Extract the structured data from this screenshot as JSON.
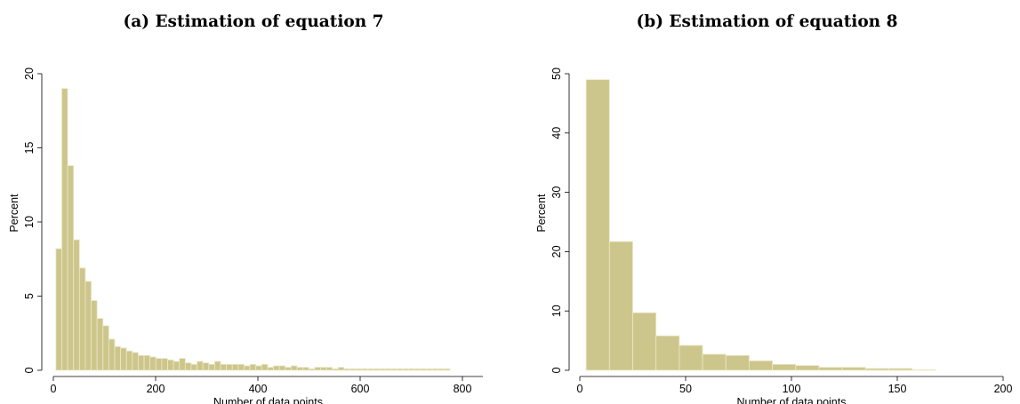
{
  "chart_data": [
    {
      "type": "bar",
      "title": "(a) Estimation of equation 7",
      "xlabel": "Number of data points",
      "ylabel": "Percent",
      "xlim": [
        0,
        840
      ],
      "ylim": [
        0,
        20
      ],
      "xticks": [
        0,
        200,
        400,
        600,
        800
      ],
      "yticks": [
        0,
        5,
        10,
        15,
        20
      ],
      "bin_width": 11.5,
      "bins_start": [
        5,
        16.5,
        28,
        39.5,
        51,
        62.5,
        74,
        85.5,
        97,
        108.5,
        120,
        131.5,
        143,
        154.5,
        166,
        177.5,
        189,
        200.5,
        212,
        223.5,
        235,
        246.5,
        258,
        269.5,
        281,
        292.5,
        304,
        315.5,
        327,
        338.5,
        350,
        361.5,
        373,
        384.5,
        396,
        407.5,
        419,
        430.5,
        442,
        453.5,
        465,
        476.5,
        488,
        499.5,
        511,
        522.5,
        534,
        545.5,
        557,
        568.5,
        580,
        591.5,
        603,
        614.5,
        626,
        637.5,
        649,
        660.5,
        672,
        683.5,
        695,
        706.5,
        718,
        729.5,
        741,
        752.5,
        764
      ],
      "values": [
        8.2,
        19.0,
        13.8,
        8.8,
        6.9,
        6.0,
        4.7,
        3.5,
        3.0,
        2.1,
        1.6,
        1.5,
        1.3,
        1.2,
        1.0,
        1.0,
        0.9,
        0.8,
        0.8,
        0.7,
        0.6,
        0.8,
        0.5,
        0.4,
        0.6,
        0.5,
        0.4,
        0.6,
        0.4,
        0.4,
        0.4,
        0.4,
        0.3,
        0.4,
        0.3,
        0.4,
        0.2,
        0.3,
        0.3,
        0.2,
        0.3,
        0.2,
        0.2,
        0.1,
        0.2,
        0.2,
        0.2,
        0.1,
        0.2,
        0.1,
        0.1,
        0.1,
        0.1,
        0.1,
        0.1,
        0.1,
        0.1,
        0.1,
        0.1,
        0.1,
        0.1,
        0.1,
        0.1,
        0.1,
        0.1,
        0.1,
        0.1
      ],
      "grid": false,
      "bar_color": "#cdc68c",
      "bar_edge_color": "#ece8c8"
    },
    {
      "type": "bar",
      "title": "(b) Estimation of equation 8",
      "xlabel": "Number of data points",
      "ylabel": "Percent",
      "xlim": [
        0,
        200
      ],
      "ylim": [
        0,
        50
      ],
      "xticks": [
        0,
        50,
        100,
        150,
        200
      ],
      "yticks": [
        0,
        10,
        20,
        30,
        40,
        50
      ],
      "bin_width": 11,
      "bins_start": [
        3,
        14,
        25,
        36,
        47,
        58,
        69,
        80,
        91,
        102,
        113,
        124,
        135,
        146,
        157
      ],
      "values": [
        49.0,
        21.7,
        9.7,
        5.8,
        4.2,
        2.7,
        2.5,
        1.6,
        1.0,
        0.8,
        0.5,
        0.5,
        0.3,
        0.3,
        0.1
      ],
      "grid": false,
      "bar_color": "#cdc68c",
      "bar_edge_color": "#ece8c8"
    }
  ]
}
